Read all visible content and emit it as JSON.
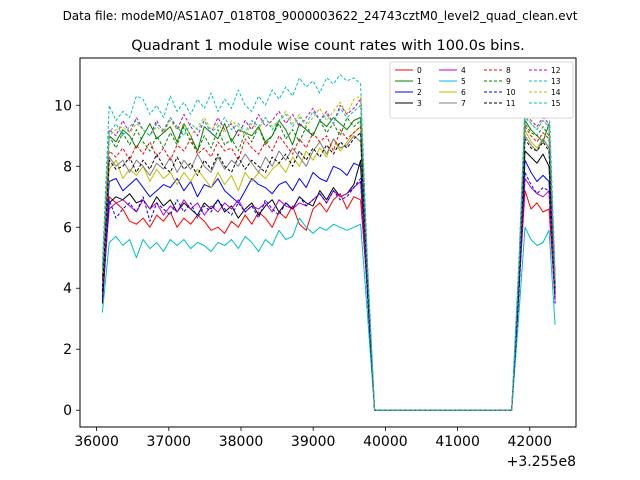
{
  "figure": {
    "suptitle": "Data file: modeM0/AS1A07_018T08_9000003622_24743cztM0_level2_quad_clean.evt",
    "title": "Quadrant 1 module wise count rates with 100.0s bins.",
    "offset_label": "+3.255e8"
  },
  "chart_data": {
    "type": "line",
    "title": "Quadrant 1 module wise count rates with 100.0s bins.",
    "xlabel": "",
    "ylabel": "",
    "x_offset": 325500000,
    "xlim": [
      35770,
      42640
    ],
    "ylim": [
      -0.55,
      11.55
    ],
    "x_ticks": [
      36000,
      37000,
      38000,
      39000,
      40000,
      41000,
      42000
    ],
    "x_tick_labels": [
      "36000",
      "37000",
      "38000",
      "39000",
      "40000",
      "41000",
      "42000"
    ],
    "y_ticks": [
      0,
      2,
      4,
      6,
      8,
      10
    ],
    "y_tick_labels": [
      "0",
      "2",
      "4",
      "6",
      "8",
      "10"
    ],
    "legend_position": "top-right",
    "grid": false,
    "gap_x": [
      39850,
      41750
    ],
    "segment1_x_start": 36080,
    "segment2_x_start": 41850,
    "segment2_x_end": 42350,
    "series": [
      {
        "name": "0",
        "color": "#ff0000",
        "dashed": false,
        "seg1": [
          3.5,
          7.0,
          6.8,
          6.6,
          6.2,
          6.1,
          6.3,
          6.0,
          6.4,
          6.2,
          6.5,
          6.0,
          6.3,
          6.1,
          6.4,
          6.2,
          5.9,
          6.0,
          5.8,
          6.2,
          6.0,
          6.4,
          6.1,
          6.5,
          6.3,
          6.0,
          6.5,
          6.3,
          6.7,
          6.1,
          5.9,
          6.6,
          6.8,
          6.5,
          6.9,
          7.1,
          6.6,
          7.0,
          6.9,
          4.0
        ],
        "seg2": [
          4.0,
          7.2,
          6.6,
          6.8,
          6.5,
          6.6,
          3.6
        ]
      },
      {
        "name": "1",
        "color": "#008000",
        "dashed": false,
        "seg1": [
          4.5,
          9.0,
          8.8,
          9.2,
          9.0,
          8.6,
          9.0,
          9.4,
          8.9,
          9.1,
          9.3,
          8.8,
          9.4,
          9.0,
          8.5,
          9.3,
          9.1,
          8.9,
          9.4,
          8.8,
          9.2,
          9.1,
          9.0,
          9.3,
          8.8,
          9.0,
          9.5,
          9.2,
          8.7,
          9.4,
          9.2,
          9.0,
          9.5,
          9.3,
          9.6,
          9.4,
          9.2,
          9.5,
          9.6,
          4.4
        ],
        "seg2": [
          4.4,
          9.5,
          9.2,
          9.0,
          8.8,
          9.4,
          4.2
        ]
      },
      {
        "name": "2",
        "color": "#0000ff",
        "dashed": false,
        "seg1": [
          4.0,
          7.5,
          7.6,
          7.2,
          7.4,
          7.6,
          7.3,
          7.0,
          7.2,
          7.4,
          7.3,
          7.6,
          7.2,
          7.5,
          7.0,
          7.4,
          7.3,
          7.6,
          7.2,
          7.0,
          6.8,
          7.2,
          7.6,
          7.4,
          7.3,
          7.1,
          7.4,
          7.5,
          7.2,
          7.6,
          7.3,
          7.8,
          7.6,
          7.5,
          8.0,
          7.9,
          7.7,
          8.1,
          8.0,
          4.1
        ],
        "seg2": [
          4.1,
          8.2,
          7.8,
          7.5,
          7.7,
          7.5,
          3.8
        ]
      },
      {
        "name": "3",
        "color": "#000000",
        "dashed": false,
        "seg1": [
          3.5,
          6.8,
          7.0,
          6.9,
          7.1,
          6.8,
          6.9,
          6.6,
          7.0,
          6.7,
          6.9,
          6.5,
          6.8,
          6.6,
          6.4,
          6.8,
          6.6,
          6.9,
          6.5,
          6.7,
          6.3,
          6.6,
          6.8,
          6.4,
          6.7,
          6.9,
          6.5,
          6.8,
          6.6,
          7.0,
          6.8,
          6.7,
          7.2,
          6.9,
          7.3,
          7.0,
          7.1,
          7.4,
          8.2,
          4.0
        ],
        "seg2": [
          4.0,
          8.5,
          8.3,
          8.1,
          8.4,
          8.0,
          3.8
        ]
      },
      {
        "name": "4",
        "color": "#bf00bf",
        "dashed": false,
        "seg1": [
          3.8,
          6.6,
          6.8,
          6.9,
          6.7,
          6.5,
          6.9,
          6.6,
          6.8,
          6.4,
          6.7,
          6.5,
          6.9,
          6.6,
          6.8,
          6.4,
          6.7,
          6.5,
          6.8,
          6.6,
          6.9,
          6.5,
          6.7,
          6.6,
          6.8,
          6.5,
          6.9,
          6.7,
          6.6,
          6.8,
          6.7,
          6.9,
          7.1,
          6.8,
          7.2,
          7.0,
          7.1,
          7.3,
          7.5,
          4.0
        ],
        "seg2": [
          4.0,
          7.6,
          7.3,
          7.1,
          7.0,
          7.2,
          3.7
        ]
      },
      {
        "name": "5",
        "color": "#00bfbf",
        "dashed": false,
        "seg1": [
          3.2,
          5.5,
          5.7,
          5.4,
          5.6,
          5.0,
          5.6,
          5.3,
          5.5,
          5.2,
          5.6,
          5.4,
          5.6,
          5.3,
          5.5,
          5.4,
          5.2,
          5.5,
          5.4,
          5.6,
          5.3,
          5.7,
          5.5,
          5.2,
          5.6,
          5.4,
          5.9,
          5.6,
          5.7,
          6.3,
          6.0,
          5.8,
          6.0,
          5.9,
          6.1,
          6.0,
          5.9,
          6.0,
          6.1,
          3.2
        ],
        "seg2": [
          3.2,
          6.0,
          5.6,
          5.4,
          5.5,
          5.9,
          2.8
        ]
      },
      {
        "name": "6",
        "color": "#bfbf00",
        "dashed": false,
        "seg1": [
          4.2,
          7.9,
          8.2,
          7.6,
          7.9,
          7.7,
          8.0,
          7.5,
          7.9,
          7.6,
          7.8,
          7.4,
          7.8,
          7.5,
          7.9,
          7.6,
          7.3,
          7.8,
          7.4,
          7.7,
          7.2,
          7.8,
          7.5,
          7.8,
          7.6,
          7.9,
          8.1,
          7.8,
          8.3,
          8.0,
          8.5,
          8.2,
          8.6,
          8.3,
          8.9,
          8.5,
          8.8,
          9.1,
          9.3,
          4.3
        ],
        "seg2": [
          4.3,
          9.2,
          8.8,
          8.6,
          8.9,
          8.6,
          4.0
        ]
      },
      {
        "name": "7",
        "color": "#7f7f7f",
        "dashed": false,
        "seg1": [
          3.9,
          8.3,
          8.0,
          8.2,
          7.8,
          8.2,
          8.0,
          7.7,
          8.1,
          7.9,
          8.3,
          7.8,
          8.2,
          7.9,
          8.4,
          8.0,
          7.8,
          8.3,
          7.9,
          8.2,
          8.0,
          8.4,
          8.1,
          7.8,
          8.3,
          8.0,
          8.5,
          8.2,
          8.6,
          8.3,
          8.0,
          8.5,
          8.8,
          8.4,
          8.9,
          8.6,
          8.7,
          9.0,
          8.8,
          4.2
        ],
        "seg2": [
          4.2,
          9.0,
          8.7,
          8.5,
          8.9,
          8.6,
          4.1
        ]
      },
      {
        "name": "8",
        "color": "#ff0000",
        "dashed": true,
        "seg1": [
          4.3,
          8.5,
          8.3,
          8.6,
          8.2,
          8.7,
          8.4,
          8.8,
          8.3,
          8.6,
          8.2,
          8.7,
          8.5,
          8.9,
          8.4,
          8.6,
          8.3,
          8.8,
          8.5,
          8.6,
          8.2,
          8.9,
          8.6,
          8.4,
          8.8,
          8.5,
          9.0,
          8.7,
          8.4,
          8.9,
          8.6,
          9.1,
          8.8,
          9.0,
          8.5,
          9.2,
          8.9,
          9.1,
          9.3,
          4.4
        ],
        "seg2": [
          4.4,
          9.3,
          9.0,
          8.8,
          9.1,
          8.9,
          4.1
        ]
      },
      {
        "name": "9",
        "color": "#008000",
        "dashed": true,
        "seg1": [
          4.4,
          9.0,
          8.6,
          9.1,
          8.7,
          9.2,
          8.8,
          8.5,
          9.0,
          8.6,
          9.1,
          8.7,
          9.3,
          8.8,
          8.5,
          9.0,
          8.6,
          9.2,
          8.7,
          8.9,
          8.5,
          9.1,
          8.8,
          9.3,
          8.7,
          9.0,
          9.4,
          8.9,
          9.2,
          8.8,
          9.3,
          9.0,
          9.5,
          9.1,
          9.4,
          9.0,
          9.6,
          9.3,
          9.5,
          4.5
        ],
        "seg2": [
          4.5,
          9.4,
          9.1,
          9.0,
          9.3,
          9.0,
          4.3
        ]
      },
      {
        "name": "10",
        "color": "#0000ff",
        "dashed": true,
        "seg1": [
          3.7,
          6.9,
          6.3,
          6.6,
          6.8,
          6.5,
          7.0,
          6.2,
          6.8,
          6.6,
          6.4,
          6.9,
          6.5,
          6.8,
          6.3,
          6.7,
          6.5,
          6.9,
          6.6,
          6.4,
          6.8,
          6.5,
          6.7,
          6.3,
          6.9,
          6.6,
          6.4,
          6.8,
          6.6,
          7.0,
          6.7,
          6.9,
          7.1,
          6.8,
          7.2,
          6.9,
          7.0,
          7.3,
          7.6,
          3.8
        ],
        "seg2": [
          3.8,
          7.8,
          7.4,
          7.1,
          7.3,
          7.2,
          3.5
        ]
      },
      {
        "name": "11",
        "color": "#000000",
        "dashed": true,
        "seg1": [
          3.9,
          8.2,
          7.9,
          8.0,
          8.3,
          7.8,
          8.2,
          7.9,
          8.4,
          8.0,
          7.8,
          8.3,
          7.9,
          8.1,
          7.7,
          8.2,
          7.9,
          8.4,
          8.0,
          7.8,
          8.3,
          7.9,
          8.2,
          8.0,
          7.8,
          8.3,
          8.1,
          8.4,
          8.0,
          8.5,
          8.2,
          8.6,
          8.3,
          8.7,
          8.4,
          8.8,
          8.6,
          8.9,
          9.1,
          4.2
        ],
        "seg2": [
          4.2,
          8.9,
          8.6,
          8.5,
          8.8,
          8.5,
          4.0
        ]
      },
      {
        "name": "12",
        "color": "#bf00bf",
        "dashed": true,
        "seg1": [
          4.5,
          9.2,
          9.0,
          9.5,
          9.1,
          9.6,
          9.2,
          9.0,
          9.5,
          9.1,
          9.6,
          9.2,
          9.7,
          9.3,
          9.0,
          9.5,
          9.1,
          9.6,
          9.2,
          9.4,
          9.0,
          9.5,
          9.2,
          9.7,
          9.3,
          9.5,
          9.8,
          9.4,
          9.7,
          9.3,
          9.6,
          9.9,
          9.5,
          9.8,
          9.4,
          10.0,
          9.7,
          9.9,
          10.2,
          4.8
        ],
        "seg2": [
          4.8,
          9.8,
          9.5,
          9.3,
          9.6,
          9.4,
          4.4
        ]
      },
      {
        "name": "13",
        "color": "#00bfbf",
        "dashed": true,
        "seg1": [
          4.8,
          10.0,
          9.5,
          9.8,
          9.6,
          10.3,
          10.2,
          9.7,
          10.0,
          9.6,
          10.3,
          9.8,
          10.1,
          9.7,
          10.2,
          9.9,
          10.4,
          9.8,
          10.2,
          9.9,
          10.5,
          10.0,
          9.8,
          10.3,
          10.0,
          10.5,
          10.2,
          10.6,
          10.3,
          10.9,
          10.6,
          10.8,
          10.4,
          10.9,
          10.7,
          11.0,
          10.8,
          10.9,
          10.7,
          5.0
        ],
        "seg2": [
          5.0,
          10.1,
          9.8,
          10.2,
          9.9,
          10.1,
          4.6
        ]
      },
      {
        "name": "14",
        "color": "#bfbf00",
        "dashed": true,
        "seg1": [
          4.5,
          9.0,
          9.2,
          9.3,
          9.1,
          9.4,
          9.2,
          9.0,
          9.3,
          9.1,
          9.5,
          9.2,
          9.4,
          9.0,
          9.3,
          9.6,
          9.2,
          9.4,
          9.1,
          9.5,
          9.3,
          9.0,
          9.4,
          9.2,
          9.6,
          9.3,
          9.5,
          9.8,
          9.4,
          9.7,
          9.3,
          9.6,
          9.9,
          9.5,
          9.8,
          10.1,
          9.7,
          10.2,
          10.3,
          4.7
        ],
        "seg2": [
          4.7,
          9.7,
          9.4,
          9.2,
          9.5,
          9.3,
          4.3
        ]
      },
      {
        "name": "15",
        "color": "#00bfbf",
        "dashed": true,
        "seg1": [
          4.6,
          9.1,
          9.4,
          9.0,
          9.3,
          9.5,
          9.2,
          9.0,
          9.4,
          9.2,
          9.6,
          9.3,
          9.0,
          9.4,
          9.2,
          9.5,
          9.1,
          9.3,
          9.6,
          9.2,
          9.4,
          9.1,
          9.5,
          9.3,
          9.6,
          9.2,
          9.5,
          9.7,
          9.3,
          9.6,
          9.4,
          9.8,
          9.5,
          9.7,
          9.4,
          9.9,
          9.6,
          9.8,
          10.0,
          4.6
        ],
        "seg2": [
          4.6,
          9.6,
          9.4,
          9.2,
          9.5,
          9.3,
          4.2
        ]
      }
    ]
  }
}
